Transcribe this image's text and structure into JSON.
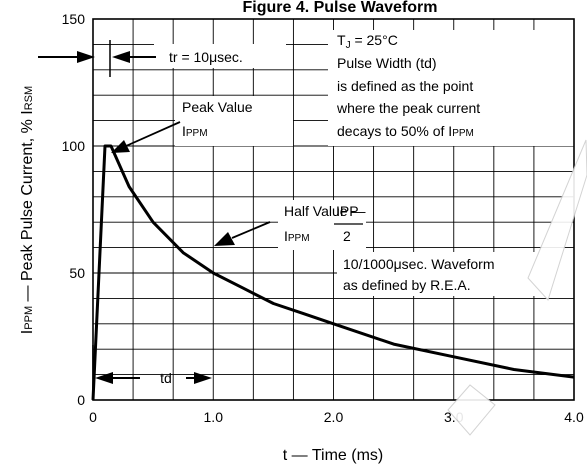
{
  "chart_data": {
    "type": "line",
    "title": "Figure 4. Pulse Waveform",
    "xlabel": "t — Time (ms)",
    "ylabel_parts": [
      "I",
      "PPM",
      " — Peak Pulse Current, % I",
      "RSM"
    ],
    "xlim": [
      0,
      4.0
    ],
    "ylim": [
      0,
      150
    ],
    "x_ticks": [
      {
        "value": 0,
        "label": "0"
      },
      {
        "value": 1,
        "label": "1.0"
      },
      {
        "value": 2,
        "label": "2.0"
      },
      {
        "value": 3,
        "label": "3.0"
      },
      {
        "value": 4,
        "label": "4.0"
      }
    ],
    "y_ticks": [
      {
        "value": 0,
        "label": "0"
      },
      {
        "value": 50,
        "label": "50"
      },
      {
        "value": 100,
        "label": "100"
      },
      {
        "value": 150,
        "label": "150"
      }
    ],
    "grid": true,
    "grid_x_step": 0.33333,
    "grid_y_step": 10,
    "series": [
      {
        "x": [
          0,
          0.1,
          0.15,
          0.3,
          0.5,
          0.75,
          1.0,
          1.25,
          1.5,
          1.75,
          2.0,
          2.5,
          3.0,
          3.5,
          4.0
        ],
        "y": [
          0,
          100,
          100,
          84,
          70,
          58,
          50,
          44,
          38,
          34,
          30,
          22,
          17,
          12,
          9
        ],
        "color": "#000000"
      }
    ],
    "annotations": {
      "tr_label": "tr = 10μsec.",
      "td_label": "td",
      "tj_parts": [
        "T",
        "J",
        " = 25°C"
      ],
      "pulse_text": [
        "Pulse Width (td)",
        "is defined as the point",
        "where the peak current"
      ],
      "decay_parts": [
        "decays to 50% of I",
        "PPM"
      ],
      "peak_value_label": "Peak Value",
      "peak_ippm_parts": [
        "I",
        "PPM"
      ],
      "half_value_label": "Half Value —",
      "half_ipp": "IPP",
      "half_two": "2",
      "half_ippm_parts": [
        "I",
        "PPM"
      ],
      "waveform_text": [
        "10/1000μsec. Waveform",
        "as defined by R.E.A."
      ]
    }
  }
}
